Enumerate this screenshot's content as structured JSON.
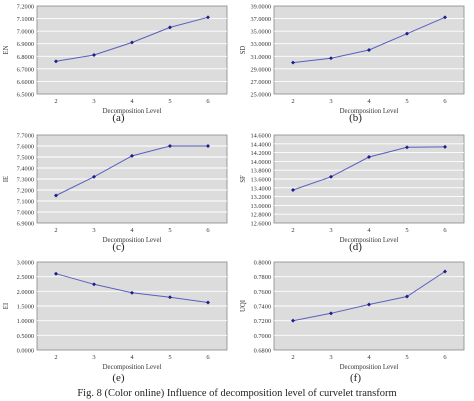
{
  "figure": {
    "caption": "Fig. 8    (Color online) Influence of decomposition level of curvelet transform"
  },
  "style": {
    "plot_bg": "#dcdcdc",
    "line_color": "#5a5fbf",
    "marker_color": "#1a1f8c",
    "grid_color": "#ffffff"
  },
  "chart_data": [
    {
      "panel": "(a)",
      "type": "line",
      "xlabel": "Decomposition Level",
      "ylabel": "EN",
      "x": [
        2,
        3,
        4,
        5,
        6
      ],
      "ylim": [
        6.5,
        7.2
      ],
      "yticks": [
        "6.5000",
        "6.6000",
        "6.7000",
        "6.8000",
        "6.9000",
        "7.0000",
        "7.1000",
        "7.2000"
      ],
      "series": [
        {
          "values": [
            6.76,
            6.81,
            6.91,
            7.03,
            7.11
          ]
        }
      ],
      "grid": true
    },
    {
      "panel": "(b)",
      "type": "line",
      "xlabel": "Decomposition Level",
      "ylabel": "SD",
      "x": [
        2,
        3,
        4,
        5,
        6
      ],
      "ylim": [
        25.0,
        39.0
      ],
      "yticks": [
        "25.0000",
        "27.0000",
        "29.0000",
        "31.0000",
        "33.0000",
        "35.0000",
        "37.0000",
        "39.0000"
      ],
      "series": [
        {
          "values": [
            30.0,
            30.7,
            32.0,
            34.6,
            37.2
          ]
        }
      ],
      "grid": true
    },
    {
      "panel": "(c)",
      "type": "line",
      "xlabel": "Decomposition Level",
      "ylabel": "IE",
      "x": [
        2,
        3,
        4,
        5,
        6
      ],
      "ylim": [
        6.9,
        7.7
      ],
      "yticks": [
        "6.9000",
        "7.0000",
        "7.1000",
        "7.2000",
        "7.3000",
        "7.4000",
        "7.5000",
        "7.6000",
        "7.7000"
      ],
      "series": [
        {
          "values": [
            7.15,
            7.32,
            7.51,
            7.6,
            7.6
          ]
        }
      ],
      "grid": true
    },
    {
      "panel": "(d)",
      "type": "line",
      "xlabel": "Decomposition Level",
      "ylabel": "SF",
      "x": [
        2,
        3,
        4,
        5,
        6
      ],
      "ylim": [
        12.6,
        14.6
      ],
      "yticks": [
        "12.6000",
        "12.8000",
        "13.0000",
        "13.2000",
        "13.4000",
        "13.6000",
        "13.8000",
        "14.0000",
        "14.2000",
        "14.4000",
        "14.6000"
      ],
      "series": [
        {
          "values": [
            13.35,
            13.65,
            14.1,
            14.32,
            14.33
          ]
        }
      ],
      "grid": true
    },
    {
      "panel": "(e)",
      "type": "line",
      "xlabel": "Decomposition Level",
      "ylabel": "EI",
      "x": [
        2,
        3,
        4,
        5,
        6
      ],
      "ylim": [
        0.0,
        3.0
      ],
      "yticks": [
        "0.0000",
        "0.5000",
        "1.0000",
        "1.5000",
        "2.0000",
        "2.5000",
        "3.0000"
      ],
      "series": [
        {
          "values": [
            2.6,
            2.24,
            1.95,
            1.8,
            1.62
          ]
        }
      ],
      "grid": true
    },
    {
      "panel": "(f)",
      "type": "line",
      "xlabel": "Decomposition Level",
      "ylabel": "UQI",
      "x": [
        2,
        3,
        4,
        5,
        6
      ],
      "ylim": [
        0.68,
        0.8
      ],
      "yticks": [
        "0.6800",
        "0.7000",
        "0.7200",
        "0.7400",
        "0.7600",
        "0.7800",
        "0.8000"
      ],
      "series": [
        {
          "values": [
            0.72,
            0.73,
            0.742,
            0.753,
            0.787
          ]
        }
      ],
      "grid": true
    }
  ]
}
